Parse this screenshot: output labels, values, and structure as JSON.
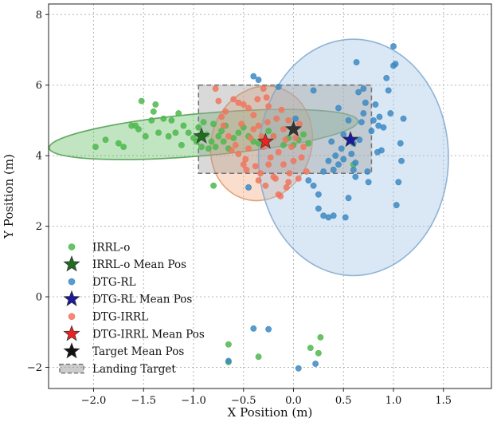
{
  "chart_data": {
    "type": "scatter",
    "title": "",
    "xlabel": "X Position (m)",
    "ylabel": "Y Position (m)",
    "xlim": [
      -2.45,
      1.98
    ],
    "ylim": [
      -2.6,
      8.3
    ],
    "xticks": [
      -2.0,
      -1.5,
      -1.0,
      -0.5,
      0.0,
      0.5,
      1.0,
      1.5
    ],
    "yticks": [
      -2,
      0,
      2,
      4,
      6,
      8
    ],
    "xtick_labels": [
      "−2.0",
      "−1.5",
      "−1.0",
      "−0.5",
      "0.0",
      "0.5",
      "1.0",
      "1.5"
    ],
    "ytick_labels": [
      "−2",
      "0",
      "2",
      "4",
      "6",
      "8"
    ],
    "grid": true,
    "legend_position": "lower-left",
    "landing_target": {
      "x_range": [
        -0.95,
        0.78
      ],
      "y_range": [
        3.5,
        6.0
      ],
      "color": "#888888",
      "label": "Landing Target"
    },
    "ellipses": [
      {
        "series": "IRRL-o",
        "center": [
          -0.9,
          4.6
        ],
        "rx": 1.55,
        "ry": 0.6,
        "angle_deg": -5,
        "fill": "#5cb85c",
        "stroke": "#4a9a4a"
      },
      {
        "series": "DTG-IRRL",
        "center": [
          -0.32,
          4.35
        ],
        "rx": 0.5,
        "ry": 1.65,
        "angle_deg": 20,
        "fill": "#f2a679",
        "stroke": "#e0955e"
      },
      {
        "series": "DTG-RL",
        "center": [
          0.6,
          3.95
        ],
        "rx": 0.95,
        "ry": 3.35,
        "angle_deg": 0,
        "fill": "#9ec1e3",
        "stroke": "#7fa8d0"
      }
    ],
    "series": [
      {
        "name": "IRRL-o",
        "color": "#4db84d",
        "marker": "circle",
        "points": [
          [
            -1.98,
            4.25
          ],
          [
            -1.88,
            4.45
          ],
          [
            -1.75,
            4.35
          ],
          [
            -1.7,
            4.25
          ],
          [
            -1.62,
            4.85
          ],
          [
            -1.58,
            4.85
          ],
          [
            -1.55,
            4.75
          ],
          [
            -1.52,
            5.55
          ],
          [
            -1.48,
            4.55
          ],
          [
            -1.42,
            5.0
          ],
          [
            -1.4,
            5.25
          ],
          [
            -1.38,
            5.45
          ],
          [
            -1.35,
            4.65
          ],
          [
            -1.3,
            5.05
          ],
          [
            -1.25,
            4.55
          ],
          [
            -1.22,
            5.0
          ],
          [
            -1.18,
            4.65
          ],
          [
            -1.15,
            5.2
          ],
          [
            -1.12,
            4.3
          ],
          [
            -1.1,
            4.85
          ],
          [
            -1.05,
            4.65
          ],
          [
            -1.0,
            4.5
          ],
          [
            -0.97,
            4.4
          ],
          [
            -0.95,
            4.8
          ],
          [
            -0.92,
            4.25
          ],
          [
            -0.9,
            4.95
          ],
          [
            -0.87,
            4.6
          ],
          [
            -0.85,
            4.2
          ],
          [
            -0.82,
            4.4
          ],
          [
            -0.8,
            4.9
          ],
          [
            -0.78,
            4.25
          ],
          [
            -0.75,
            4.55
          ],
          [
            -0.72,
            4.7
          ],
          [
            -0.7,
            4.4
          ],
          [
            -0.68,
            4.85
          ],
          [
            -0.65,
            4.2
          ],
          [
            -0.6,
            4.5
          ],
          [
            -0.55,
            4.65
          ],
          [
            -0.5,
            4.8
          ],
          [
            -0.45,
            4.55
          ],
          [
            -0.4,
            4.4
          ],
          [
            -0.35,
            4.35
          ],
          [
            -0.3,
            4.5
          ],
          [
            -0.25,
            4.7
          ],
          [
            -0.2,
            4.55
          ],
          [
            -0.1,
            4.3
          ],
          [
            -0.05,
            4.5
          ],
          [
            0.0,
            4.3
          ],
          [
            0.05,
            4.45
          ],
          [
            0.1,
            4.6
          ],
          [
            0.15,
            4.35
          ],
          [
            0.6,
            3.75
          ],
          [
            -0.8,
            3.15
          ],
          [
            -0.65,
            -1.35
          ],
          [
            -0.65,
            -1.85
          ],
          [
            -0.35,
            -1.7
          ],
          [
            0.27,
            -1.15
          ],
          [
            0.17,
            -1.45
          ],
          [
            0.25,
            -1.6
          ]
        ]
      },
      {
        "name": "DTG-RL",
        "color": "#3d8ac2",
        "marker": "circle",
        "points": [
          [
            -0.4,
            6.25
          ],
          [
            -0.35,
            6.15
          ],
          [
            -0.15,
            5.95
          ],
          [
            0.02,
            5.05
          ],
          [
            0.25,
            2.5
          ],
          [
            0.3,
            2.3
          ],
          [
            0.35,
            2.25
          ],
          [
            0.4,
            2.3
          ],
          [
            0.25,
            2.9
          ],
          [
            0.2,
            3.15
          ],
          [
            0.15,
            3.3
          ],
          [
            0.3,
            3.55
          ],
          [
            0.35,
            3.85
          ],
          [
            0.4,
            3.6
          ],
          [
            0.42,
            4.0
          ],
          [
            0.45,
            3.75
          ],
          [
            0.48,
            4.2
          ],
          [
            0.5,
            3.9
          ],
          [
            0.52,
            2.25
          ],
          [
            0.55,
            2.8
          ],
          [
            0.55,
            5.0
          ],
          [
            0.58,
            4.05
          ],
          [
            0.6,
            3.6
          ],
          [
            0.6,
            4.35
          ],
          [
            0.62,
            3.8
          ],
          [
            0.63,
            6.65
          ],
          [
            0.65,
            5.8
          ],
          [
            0.66,
            4.45
          ],
          [
            0.68,
            4.95
          ],
          [
            0.7,
            5.2
          ],
          [
            0.72,
            5.5
          ],
          [
            0.74,
            3.55
          ],
          [
            0.75,
            3.25
          ],
          [
            0.78,
            4.7
          ],
          [
            0.8,
            5.0
          ],
          [
            0.82,
            5.45
          ],
          [
            0.84,
            4.1
          ],
          [
            0.86,
            5.1
          ],
          [
            0.88,
            4.15
          ],
          [
            0.9,
            4.8
          ],
          [
            0.93,
            6.2
          ],
          [
            0.95,
            5.85
          ],
          [
            0.97,
            5.2
          ],
          [
            1.0,
            6.55
          ],
          [
            1.0,
            7.1
          ],
          [
            1.02,
            6.6
          ],
          [
            1.03,
            2.6
          ],
          [
            1.05,
            3.25
          ],
          [
            1.07,
            4.35
          ],
          [
            1.08,
            3.85
          ],
          [
            1.1,
            5.05
          ],
          [
            0.45,
            5.35
          ],
          [
            0.5,
            4.6
          ],
          [
            0.38,
            4.4
          ],
          [
            0.2,
            5.85
          ],
          [
            0.7,
            5.9
          ],
          [
            0.85,
            4.85
          ],
          [
            0.62,
            3.4
          ],
          [
            -0.45,
            3.1
          ],
          [
            -0.4,
            -0.9
          ],
          [
            -0.25,
            -0.92
          ],
          [
            0.05,
            -2.03
          ],
          [
            -0.65,
            -1.82
          ],
          [
            0.22,
            -1.9
          ]
        ]
      },
      {
        "name": "DTG-IRRL",
        "color": "#f0765e",
        "marker": "circle",
        "points": [
          [
            -0.78,
            5.9
          ],
          [
            -0.75,
            5.55
          ],
          [
            -0.72,
            5.1
          ],
          [
            -0.7,
            4.85
          ],
          [
            -0.68,
            5.25
          ],
          [
            -0.65,
            4.55
          ],
          [
            -0.6,
            5.6
          ],
          [
            -0.58,
            4.3
          ],
          [
            -0.55,
            5.5
          ],
          [
            -0.52,
            4.9
          ],
          [
            -0.5,
            5.45
          ],
          [
            -0.48,
            3.9
          ],
          [
            -0.45,
            5.35
          ],
          [
            -0.43,
            4.5
          ],
          [
            -0.4,
            5.15
          ],
          [
            -0.38,
            3.7
          ],
          [
            -0.36,
            5.6
          ],
          [
            -0.35,
            4.85
          ],
          [
            -0.33,
            3.5
          ],
          [
            -0.3,
            5.9
          ],
          [
            -0.3,
            4.25
          ],
          [
            -0.28,
            3.15
          ],
          [
            -0.26,
            4.95
          ],
          [
            -0.25,
            5.4
          ],
          [
            -0.23,
            3.95
          ],
          [
            -0.2,
            4.55
          ],
          [
            -0.18,
            3.35
          ],
          [
            -0.17,
            5.05
          ],
          [
            -0.15,
            4.1
          ],
          [
            -0.13,
            2.85
          ],
          [
            -0.12,
            5.3
          ],
          [
            -0.1,
            3.75
          ],
          [
            -0.08,
            4.45
          ],
          [
            -0.07,
            3.1
          ],
          [
            -0.05,
            5.0
          ],
          [
            -0.04,
            3.5
          ],
          [
            -0.02,
            4.25
          ],
          [
            0.0,
            3.85
          ],
          [
            0.02,
            4.5
          ],
          [
            0.05,
            3.35
          ],
          [
            0.08,
            3.95
          ],
          [
            0.1,
            4.25
          ],
          [
            0.13,
            3.55
          ],
          [
            -0.55,
            4.05
          ],
          [
            -0.5,
            3.75
          ],
          [
            -0.25,
            3.75
          ],
          [
            -0.2,
            3.4
          ],
          [
            -0.4,
            4.75
          ],
          [
            -0.35,
            3.3
          ],
          [
            -0.15,
            2.9
          ],
          [
            -0.62,
            4.15
          ],
          [
            -0.45,
            4.2
          ],
          [
            -0.1,
            4.75
          ],
          [
            -0.05,
            3.25
          ],
          [
            0.06,
            4.9
          ],
          [
            -0.27,
            5.65
          ],
          [
            -0.47,
            3.6
          ],
          [
            -0.32,
            4.55
          ]
        ]
      }
    ],
    "means": [
      {
        "name": "IRRL-o Mean Pos",
        "x": -0.92,
        "y": 4.55,
        "color": "#1f6e1f"
      },
      {
        "name": "DTG-IRRL Mean Pos",
        "x": -0.28,
        "y": 4.4,
        "color": "#ee2222"
      },
      {
        "name": "DTG-RL Mean Pos",
        "x": 0.57,
        "y": 4.45,
        "color": "#1a1a9e"
      },
      {
        "name": "Target Mean Pos",
        "x": 0.0,
        "y": 4.75,
        "color": "#333333"
      }
    ],
    "legend": [
      {
        "label": "IRRL-o",
        "kind": "dot",
        "color": "#4db84d"
      },
      {
        "label": "IRRL-o Mean Pos",
        "kind": "star",
        "color": "#1f6e1f"
      },
      {
        "label": "DTG-RL",
        "kind": "dot",
        "color": "#3d8ac2"
      },
      {
        "label": "DTG-RL Mean Pos",
        "kind": "star",
        "color": "#1a1a9e"
      },
      {
        "label": "DTG-IRRL",
        "kind": "dot",
        "color": "#f0765e"
      },
      {
        "label": "DTG-IRRL Mean Pos",
        "kind": "star",
        "color": "#ee2222"
      },
      {
        "label": "Target Mean Pos",
        "kind": "star",
        "color": "#111111"
      },
      {
        "label": "Landing Target",
        "kind": "box",
        "color": "#888888"
      }
    ]
  }
}
